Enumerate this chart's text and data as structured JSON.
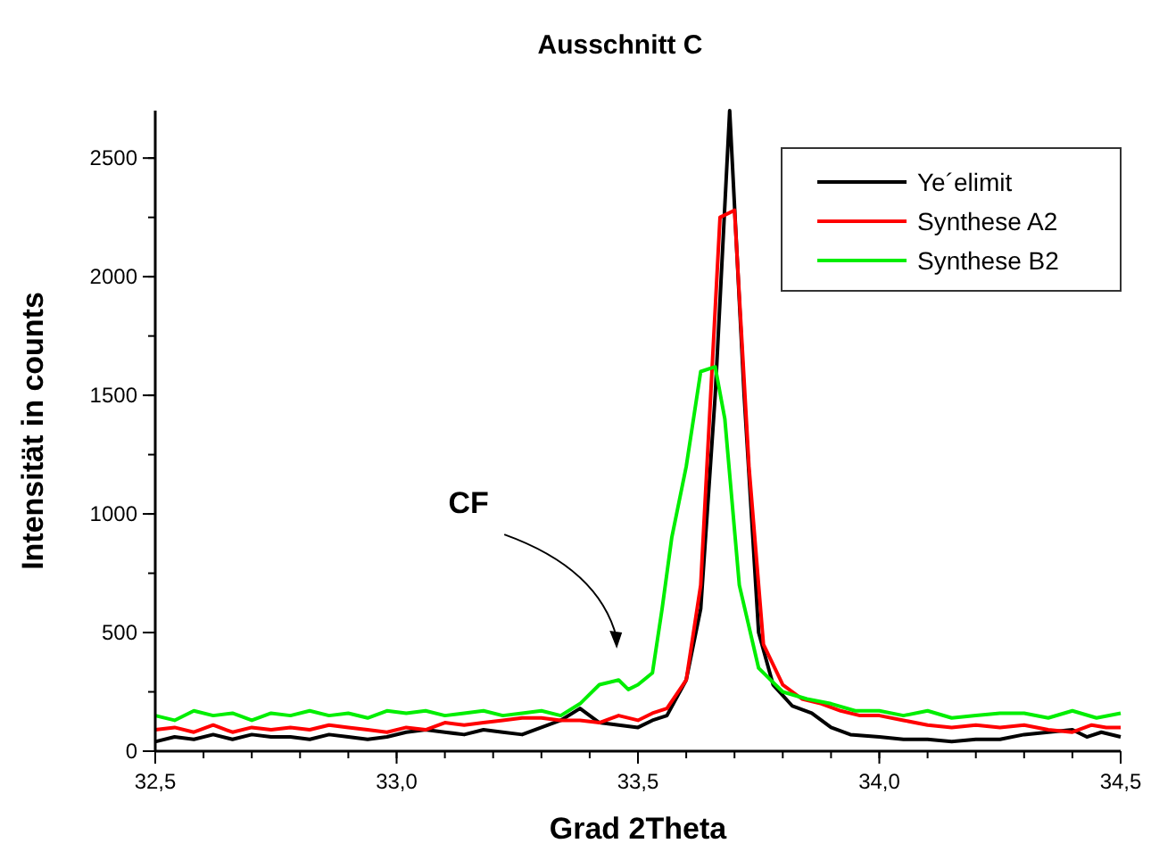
{
  "chart_data": {
    "type": "line",
    "title": "Ausschnitt C",
    "xlabel": "Grad 2Theta",
    "ylabel": "Intensität in counts",
    "xlim": [
      32.5,
      34.5
    ],
    "ylim": [
      0,
      2700
    ],
    "xticks": [
      {
        "value": 32.5,
        "label": "32,5"
      },
      {
        "value": 33.0,
        "label": "33,0"
      },
      {
        "value": 33.5,
        "label": "33,5"
      },
      {
        "value": 34.0,
        "label": "34,0"
      },
      {
        "value": 34.5,
        "label": "34,5"
      }
    ],
    "yticks": [
      0,
      500,
      1000,
      1500,
      2000,
      2500
    ],
    "legend": "top right",
    "grid": false,
    "marker": "none",
    "line_style": "solid",
    "annotations": [
      "CF"
    ],
    "series": [
      {
        "name": "Ye´elimit",
        "color": "#000000",
        "x": [
          32.5,
          32.54,
          32.58,
          32.62,
          32.66,
          32.7,
          32.74,
          32.78,
          32.82,
          32.86,
          32.9,
          32.94,
          32.98,
          33.02,
          33.06,
          33.1,
          33.14,
          33.18,
          33.22,
          33.26,
          33.3,
          33.34,
          33.38,
          33.42,
          33.46,
          33.5,
          33.53,
          33.56,
          33.6,
          33.63,
          33.66,
          33.69,
          33.72,
          33.75,
          33.78,
          33.82,
          33.86,
          33.9,
          33.94,
          34.0,
          34.05,
          34.1,
          34.15,
          34.2,
          34.25,
          34.3,
          34.35,
          34.4,
          34.43,
          34.46,
          34.5
        ],
        "values": [
          40,
          60,
          50,
          70,
          50,
          70,
          60,
          60,
          50,
          70,
          60,
          50,
          60,
          80,
          90,
          80,
          70,
          90,
          80,
          70,
          100,
          130,
          180,
          120,
          110,
          100,
          130,
          150,
          300,
          600,
          1500,
          2700,
          1500,
          500,
          280,
          190,
          160,
          100,
          70,
          60,
          50,
          50,
          40,
          50,
          50,
          70,
          80,
          90,
          60,
          80,
          60
        ]
      },
      {
        "name": "Synthese A2",
        "color": "#ff0000",
        "x": [
          32.5,
          32.54,
          32.58,
          32.62,
          32.66,
          32.7,
          32.74,
          32.78,
          32.82,
          32.86,
          32.9,
          32.94,
          32.98,
          33.02,
          33.06,
          33.1,
          33.14,
          33.18,
          33.22,
          33.26,
          33.3,
          33.34,
          33.38,
          33.42,
          33.46,
          33.5,
          33.53,
          33.56,
          33.6,
          33.63,
          33.67,
          33.7,
          33.73,
          33.76,
          33.8,
          33.84,
          33.88,
          33.92,
          33.96,
          34.0,
          34.05,
          34.1,
          34.15,
          34.2,
          34.25,
          34.3,
          34.35,
          34.4,
          34.44,
          34.47,
          34.5
        ],
        "values": [
          90,
          100,
          80,
          110,
          80,
          100,
          90,
          100,
          90,
          110,
          100,
          90,
          80,
          100,
          90,
          120,
          110,
          120,
          130,
          140,
          140,
          130,
          130,
          120,
          150,
          130,
          160,
          180,
          300,
          700,
          2250,
          2280,
          1200,
          450,
          280,
          220,
          200,
          170,
          150,
          150,
          130,
          110,
          100,
          110,
          100,
          110,
          90,
          80,
          110,
          100,
          100
        ]
      },
      {
        "name": "Synthese B2",
        "color": "#00ee00",
        "x": [
          32.5,
          32.54,
          32.58,
          32.62,
          32.66,
          32.7,
          32.74,
          32.78,
          32.82,
          32.86,
          32.9,
          32.94,
          32.98,
          33.02,
          33.06,
          33.1,
          33.14,
          33.18,
          33.22,
          33.26,
          33.3,
          33.34,
          33.38,
          33.42,
          33.46,
          33.48,
          33.5,
          33.53,
          33.55,
          33.57,
          33.6,
          33.63,
          33.66,
          33.68,
          33.71,
          33.75,
          33.8,
          33.85,
          33.9,
          33.95,
          34.0,
          34.05,
          34.1,
          34.15,
          34.2,
          34.25,
          34.3,
          34.35,
          34.4,
          34.45,
          34.5
        ],
        "values": [
          150,
          130,
          170,
          150,
          160,
          130,
          160,
          150,
          170,
          150,
          160,
          140,
          170,
          160,
          170,
          150,
          160,
          170,
          150,
          160,
          170,
          150,
          200,
          280,
          300,
          260,
          280,
          330,
          600,
          900,
          1200,
          1600,
          1620,
          1400,
          700,
          350,
          250,
          220,
          200,
          170,
          170,
          150,
          170,
          140,
          150,
          160,
          160,
          140,
          170,
          140,
          160
        ]
      }
    ]
  }
}
